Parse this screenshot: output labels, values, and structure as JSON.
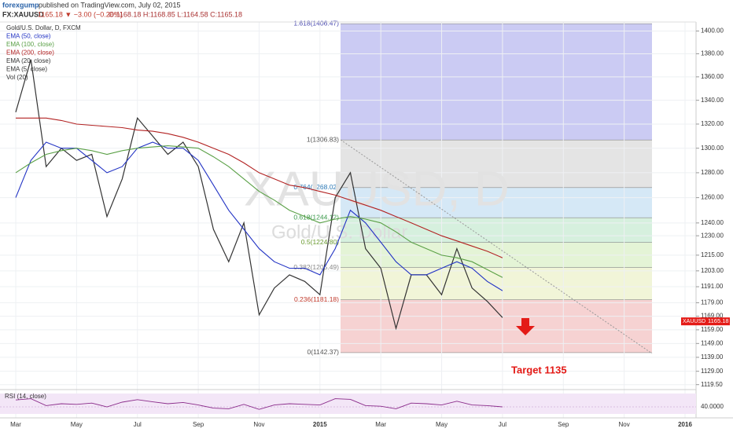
{
  "chart_data": {
    "type": "line",
    "log_scale": true,
    "grid": true,
    "header": {
      "author": "forexgump",
      "published": "published on TradingView.com, July 02, 2015",
      "symbol": "FX:XAUUSD",
      "quote": "1165.18 ▼ −3.00 (−0.26%)",
      "ohlc": "O:1168.18 H:1168.85 L:1164.58 C:1165.18"
    },
    "title": "Gold/U.S. Dollar, D, FXCM",
    "indicators": [
      "EMA (20, close)",
      "EMA (5, close)",
      "Vol (20)"
    ],
    "watermark": [
      "XAUUSD, D",
      "Gold/U.S. Dollar"
    ],
    "categories": [
      "Mar",
      null,
      null,
      null,
      "May",
      null,
      null,
      null,
      "Jul",
      null,
      null,
      null,
      "Sep",
      null,
      null,
      null,
      "Nov",
      null,
      null,
      null,
      "2015",
      null,
      null,
      null,
      "Mar",
      null,
      null,
      null,
      "May",
      null,
      null,
      null,
      "Jul",
      null,
      null,
      null,
      "Sep",
      null,
      null,
      null,
      "Nov",
      null,
      null,
      null,
      "2016"
    ],
    "series": [
      {
        "name": "Gold/U.S. Dollar, D, FXCM",
        "color": "#333333",
        "values": [
          1330,
          1375,
          1285,
          1300,
          1290,
          1295,
          1245,
          1275,
          1325,
          1310,
          1295,
          1305,
          1285,
          1235,
          1210,
          1240,
          1170,
          1190,
          1200,
          1195,
          1185,
          1260,
          1280,
          1220,
          1205,
          1160,
          1200,
          1200,
          1185,
          1220,
          1190,
          1180,
          1168,
          null,
          null,
          null,
          null,
          null,
          null,
          null,
          null,
          null,
          null,
          null,
          null
        ]
      },
      {
        "name": "EMA (50, close)",
        "color": "#2233c4",
        "values": [
          1260,
          1290,
          1305,
          1300,
          1300,
          1290,
          1280,
          1285,
          1300,
          1305,
          1300,
          1300,
          1290,
          1270,
          1250,
          1235,
          1220,
          1210,
          1205,
          1205,
          1200,
          1220,
          1250,
          1240,
          1225,
          1210,
          1200,
          1200,
          1205,
          1210,
          1205,
          1195,
          1188,
          null,
          null,
          null,
          null,
          null,
          null,
          null,
          null,
          null,
          null,
          null,
          null
        ]
      },
      {
        "name": "EMA (100, close)",
        "color": "#5aa046",
        "values": [
          1280,
          1288,
          1295,
          1298,
          1300,
          1298,
          1295,
          1298,
          1300,
          1301,
          1302,
          1301,
          1300,
          1293,
          1285,
          1275,
          1265,
          1258,
          1250,
          1245,
          1240,
          1243,
          1245,
          1243,
          1240,
          1233,
          1225,
          1220,
          1215,
          1213,
          1210,
          1204,
          1198,
          null,
          null,
          null,
          null,
          null,
          null,
          null,
          null,
          null,
          null,
          null,
          null
        ]
      },
      {
        "name": "EMA (200, close)",
        "color": "#b22222",
        "values": [
          1325,
          1325,
          1325,
          1323,
          1320,
          1319,
          1318,
          1317,
          1315,
          1314,
          1312,
          1309,
          1305,
          1300,
          1295,
          1288,
          1280,
          1275,
          1270,
          1268,
          1265,
          1262,
          1258,
          1254,
          1250,
          1245,
          1240,
          1235,
          1230,
          1226,
          1222,
          1218,
          1213,
          null,
          null,
          null,
          null,
          null,
          null,
          null,
          null,
          null,
          null,
          null,
          null
        ]
      }
    ],
    "ylim": [
      1116,
      1408
    ],
    "yticks": [
      {
        "value": 1400,
        "label": "1400.00"
      },
      {
        "value": 1380,
        "label": "1380.00"
      },
      {
        "value": 1360,
        "label": "1360.00"
      },
      {
        "value": 1340,
        "label": "1340.00"
      },
      {
        "value": 1320,
        "label": "1320.00"
      },
      {
        "value": 1300,
        "label": "1300.00"
      },
      {
        "value": 1280,
        "label": "1280.00"
      },
      {
        "value": 1260,
        "label": "1260.00"
      },
      {
        "value": 1240,
        "label": "1240.00"
      },
      {
        "value": 1230,
        "label": "1230.00"
      },
      {
        "value": 1215,
        "label": "1215.00"
      },
      {
        "value": 1203,
        "label": "1203.00"
      },
      {
        "value": 1191,
        "label": "1191.00"
      },
      {
        "value": 1179,
        "label": "1179.00"
      },
      {
        "value": 1169,
        "label": "1169.00"
      },
      {
        "value": 1159,
        "label": "1159.00"
      },
      {
        "value": 1149,
        "label": "1149.00"
      },
      {
        "value": 1139,
        "label": "1139.00"
      },
      {
        "value": 1129,
        "label": "1129.00"
      },
      {
        "value": 1119.5,
        "label": "1119.50"
      }
    ],
    "fib_levels": [
      {
        "value": 1406.47,
        "label": "1.618(1406.47)"
      },
      {
        "value": 1306.83,
        "label": "1(1306.83)"
      },
      {
        "value": 1268.02,
        "label": "0.764(1268.02)"
      },
      {
        "value": 1244.12,
        "label": "0.618(1244.12)"
      },
      {
        "value": 1224.8,
        "label": "0.5(1224.80)"
      },
      {
        "value": 1205.49,
        "label": "0.382(1205.49)"
      },
      {
        "value": 1181.18,
        "label": "0.236(1181.18)"
      },
      {
        "value": 1142.37,
        "label": "0(1142.37)"
      }
    ],
    "fib_colors": [
      "#cbcbf3",
      "#e4e4e4",
      "#d5e8f6",
      "#d6f0de",
      "#e4f4d6",
      "#f1f5d8",
      "#f6d2d2"
    ],
    "last_price_symbol": "XAUUSD",
    "last_price": 1165.18,
    "annotation": "Target 1135",
    "rsi": {
      "title": "RSI (14, close)",
      "color": "#8a2b8a",
      "ylim": [
        10,
        90
      ],
      "yticks": [
        {
          "value": 40,
          "label": "40.0000"
        }
      ],
      "values": [
        62,
        66,
        44,
        50,
        48,
        52,
        40,
        55,
        63,
        56,
        50,
        54,
        46,
        36,
        34,
        48,
        32,
        46,
        50,
        48,
        46,
        66,
        64,
        44,
        42,
        34,
        52,
        50,
        46,
        58,
        46,
        44,
        40,
        null,
        null,
        null,
        null,
        null,
        null,
        null,
        null,
        null,
        null,
        null,
        null
      ]
    }
  }
}
